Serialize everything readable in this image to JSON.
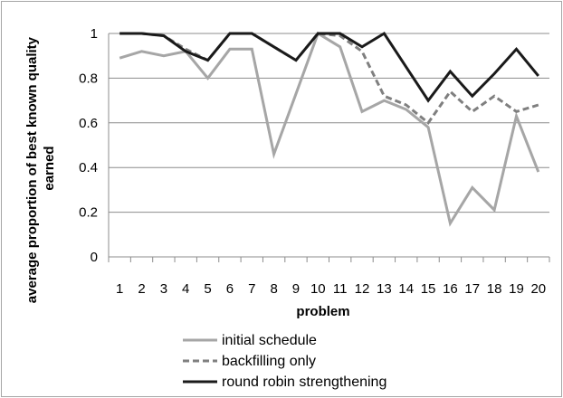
{
  "chart_data": {
    "type": "line",
    "title": "",
    "xlabel": "problem",
    "ylabel": "average proportion of best known quality earned",
    "ylabel_lines": [
      "average proportion of best known quality",
      "earned"
    ],
    "x": [
      "1",
      "2",
      "3",
      "4",
      "5",
      "6",
      "7",
      "8",
      "9",
      "10",
      "11",
      "12",
      "13",
      "14",
      "15",
      "16",
      "17",
      "18",
      "19",
      "20"
    ],
    "ylim": [
      0,
      1
    ],
    "yticks": [
      "0",
      "0.2",
      "0.4",
      "0.6",
      "0.8",
      "1"
    ],
    "grid": true,
    "legend_position": "bottom",
    "series": [
      {
        "name": "initial schedule",
        "color": "#a6a6a6",
        "dash": "solid",
        "values": [
          0.89,
          0.92,
          0.9,
          0.92,
          0.8,
          0.93,
          0.93,
          0.46,
          0.73,
          1.0,
          0.94,
          0.65,
          0.7,
          0.66,
          0.58,
          0.15,
          0.31,
          0.21,
          0.63,
          0.38
        ]
      },
      {
        "name": "backfilling only",
        "color": "#7f7f7f",
        "dash": "dashed",
        "values": [
          1.0,
          1.0,
          0.99,
          0.93,
          0.88,
          1.0,
          1.0,
          0.94,
          0.88,
          1.0,
          0.99,
          0.92,
          0.72,
          0.68,
          0.6,
          0.74,
          0.65,
          0.72,
          0.65,
          0.68
        ]
      },
      {
        "name": "round robin strengthening",
        "color": "#1a1a1a",
        "dash": "solid",
        "values": [
          1.0,
          1.0,
          0.99,
          0.92,
          0.88,
          1.0,
          1.0,
          0.94,
          0.88,
          1.0,
          1.0,
          0.94,
          1.0,
          0.85,
          0.7,
          0.83,
          0.72,
          0.82,
          0.93,
          0.81
        ]
      }
    ]
  }
}
